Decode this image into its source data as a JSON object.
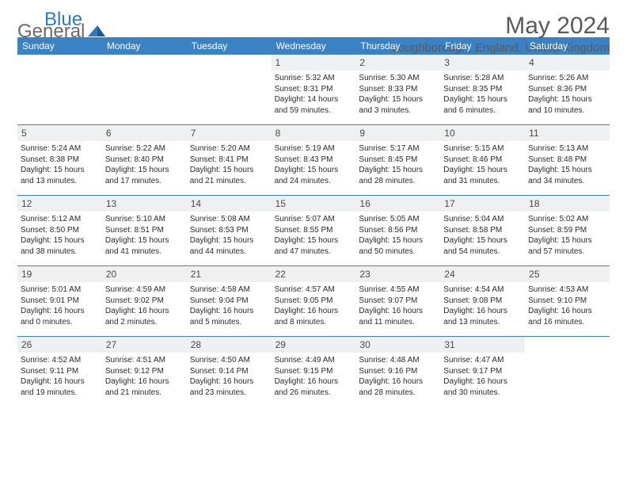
{
  "logo": {
    "part1": "General",
    "part2": "Blue"
  },
  "title": "May 2024",
  "location": "Loughborough, England, United Kingdom",
  "colors": {
    "header_bg": "#3b82c4",
    "header_text": "#ffffff",
    "daynum_bg": "#eef0f2",
    "text": "#2b2b2b",
    "muted": "#5a5a5a",
    "logo_blue": "#2f7abf",
    "week_border": "#3b82c4"
  },
  "typography": {
    "title_fontsize": 30,
    "location_fontsize": 15,
    "dow_fontsize": 12,
    "daynum_fontsize": 12,
    "cell_fontsize": 10
  },
  "days_of_week": [
    "Sunday",
    "Monday",
    "Tuesday",
    "Wednesday",
    "Thursday",
    "Friday",
    "Saturday"
  ],
  "weeks": [
    [
      {
        "n": "",
        "empty": true
      },
      {
        "n": "",
        "empty": true
      },
      {
        "n": "",
        "empty": true
      },
      {
        "n": "1",
        "sunrise": "Sunrise: 5:32 AM",
        "sunset": "Sunset: 8:31 PM",
        "d1": "Daylight: 14 hours",
        "d2": "and 59 minutes."
      },
      {
        "n": "2",
        "sunrise": "Sunrise: 5:30 AM",
        "sunset": "Sunset: 8:33 PM",
        "d1": "Daylight: 15 hours",
        "d2": "and 3 minutes."
      },
      {
        "n": "3",
        "sunrise": "Sunrise: 5:28 AM",
        "sunset": "Sunset: 8:35 PM",
        "d1": "Daylight: 15 hours",
        "d2": "and 6 minutes."
      },
      {
        "n": "4",
        "sunrise": "Sunrise: 5:26 AM",
        "sunset": "Sunset: 8:36 PM",
        "d1": "Daylight: 15 hours",
        "d2": "and 10 minutes."
      }
    ],
    [
      {
        "n": "5",
        "sunrise": "Sunrise: 5:24 AM",
        "sunset": "Sunset: 8:38 PM",
        "d1": "Daylight: 15 hours",
        "d2": "and 13 minutes."
      },
      {
        "n": "6",
        "sunrise": "Sunrise: 5:22 AM",
        "sunset": "Sunset: 8:40 PM",
        "d1": "Daylight: 15 hours",
        "d2": "and 17 minutes."
      },
      {
        "n": "7",
        "sunrise": "Sunrise: 5:20 AM",
        "sunset": "Sunset: 8:41 PM",
        "d1": "Daylight: 15 hours",
        "d2": "and 21 minutes."
      },
      {
        "n": "8",
        "sunrise": "Sunrise: 5:19 AM",
        "sunset": "Sunset: 8:43 PM",
        "d1": "Daylight: 15 hours",
        "d2": "and 24 minutes."
      },
      {
        "n": "9",
        "sunrise": "Sunrise: 5:17 AM",
        "sunset": "Sunset: 8:45 PM",
        "d1": "Daylight: 15 hours",
        "d2": "and 28 minutes."
      },
      {
        "n": "10",
        "sunrise": "Sunrise: 5:15 AM",
        "sunset": "Sunset: 8:46 PM",
        "d1": "Daylight: 15 hours",
        "d2": "and 31 minutes."
      },
      {
        "n": "11",
        "sunrise": "Sunrise: 5:13 AM",
        "sunset": "Sunset: 8:48 PM",
        "d1": "Daylight: 15 hours",
        "d2": "and 34 minutes."
      }
    ],
    [
      {
        "n": "12",
        "sunrise": "Sunrise: 5:12 AM",
        "sunset": "Sunset: 8:50 PM",
        "d1": "Daylight: 15 hours",
        "d2": "and 38 minutes."
      },
      {
        "n": "13",
        "sunrise": "Sunrise: 5:10 AM",
        "sunset": "Sunset: 8:51 PM",
        "d1": "Daylight: 15 hours",
        "d2": "and 41 minutes."
      },
      {
        "n": "14",
        "sunrise": "Sunrise: 5:08 AM",
        "sunset": "Sunset: 8:53 PM",
        "d1": "Daylight: 15 hours",
        "d2": "and 44 minutes."
      },
      {
        "n": "15",
        "sunrise": "Sunrise: 5:07 AM",
        "sunset": "Sunset: 8:55 PM",
        "d1": "Daylight: 15 hours",
        "d2": "and 47 minutes."
      },
      {
        "n": "16",
        "sunrise": "Sunrise: 5:05 AM",
        "sunset": "Sunset: 8:56 PM",
        "d1": "Daylight: 15 hours",
        "d2": "and 50 minutes."
      },
      {
        "n": "17",
        "sunrise": "Sunrise: 5:04 AM",
        "sunset": "Sunset: 8:58 PM",
        "d1": "Daylight: 15 hours",
        "d2": "and 54 minutes."
      },
      {
        "n": "18",
        "sunrise": "Sunrise: 5:02 AM",
        "sunset": "Sunset: 8:59 PM",
        "d1": "Daylight: 15 hours",
        "d2": "and 57 minutes."
      }
    ],
    [
      {
        "n": "19",
        "sunrise": "Sunrise: 5:01 AM",
        "sunset": "Sunset: 9:01 PM",
        "d1": "Daylight: 16 hours",
        "d2": "and 0 minutes."
      },
      {
        "n": "20",
        "sunrise": "Sunrise: 4:59 AM",
        "sunset": "Sunset: 9:02 PM",
        "d1": "Daylight: 16 hours",
        "d2": "and 2 minutes."
      },
      {
        "n": "21",
        "sunrise": "Sunrise: 4:58 AM",
        "sunset": "Sunset: 9:04 PM",
        "d1": "Daylight: 16 hours",
        "d2": "and 5 minutes."
      },
      {
        "n": "22",
        "sunrise": "Sunrise: 4:57 AM",
        "sunset": "Sunset: 9:05 PM",
        "d1": "Daylight: 16 hours",
        "d2": "and 8 minutes."
      },
      {
        "n": "23",
        "sunrise": "Sunrise: 4:55 AM",
        "sunset": "Sunset: 9:07 PM",
        "d1": "Daylight: 16 hours",
        "d2": "and 11 minutes."
      },
      {
        "n": "24",
        "sunrise": "Sunrise: 4:54 AM",
        "sunset": "Sunset: 9:08 PM",
        "d1": "Daylight: 16 hours",
        "d2": "and 13 minutes."
      },
      {
        "n": "25",
        "sunrise": "Sunrise: 4:53 AM",
        "sunset": "Sunset: 9:10 PM",
        "d1": "Daylight: 16 hours",
        "d2": "and 16 minutes."
      }
    ],
    [
      {
        "n": "26",
        "sunrise": "Sunrise: 4:52 AM",
        "sunset": "Sunset: 9:11 PM",
        "d1": "Daylight: 16 hours",
        "d2": "and 19 minutes."
      },
      {
        "n": "27",
        "sunrise": "Sunrise: 4:51 AM",
        "sunset": "Sunset: 9:12 PM",
        "d1": "Daylight: 16 hours",
        "d2": "and 21 minutes."
      },
      {
        "n": "28",
        "sunrise": "Sunrise: 4:50 AM",
        "sunset": "Sunset: 9:14 PM",
        "d1": "Daylight: 16 hours",
        "d2": "and 23 minutes."
      },
      {
        "n": "29",
        "sunrise": "Sunrise: 4:49 AM",
        "sunset": "Sunset: 9:15 PM",
        "d1": "Daylight: 16 hours",
        "d2": "and 26 minutes."
      },
      {
        "n": "30",
        "sunrise": "Sunrise: 4:48 AM",
        "sunset": "Sunset: 9:16 PM",
        "d1": "Daylight: 16 hours",
        "d2": "and 28 minutes."
      },
      {
        "n": "31",
        "sunrise": "Sunrise: 4:47 AM",
        "sunset": "Sunset: 9:17 PM",
        "d1": "Daylight: 16 hours",
        "d2": "and 30 minutes."
      },
      {
        "n": "",
        "empty": true
      }
    ]
  ]
}
